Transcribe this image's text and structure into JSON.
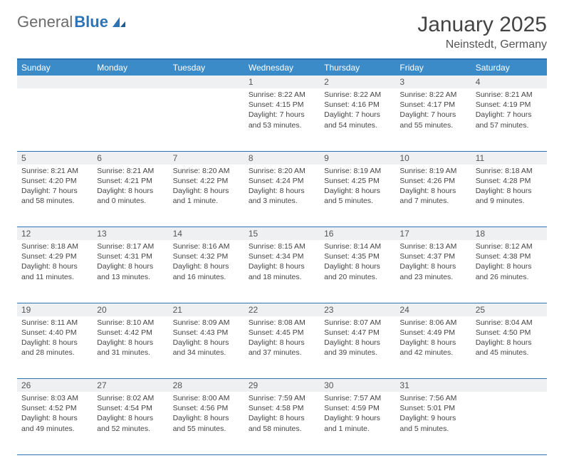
{
  "brand": {
    "part1": "General",
    "part2": "Blue"
  },
  "title": "January 2025",
  "location": "Neinstedt, Germany",
  "colors": {
    "header_bg": "#3b8bc9",
    "header_text": "#ffffff",
    "rule": "#2e74b5",
    "daynum_bg": "#eef0f2",
    "text": "#444444"
  },
  "day_headers": [
    "Sunday",
    "Monday",
    "Tuesday",
    "Wednesday",
    "Thursday",
    "Friday",
    "Saturday"
  ],
  "weeks": [
    [
      null,
      null,
      null,
      {
        "n": "1",
        "sr": "8:22 AM",
        "ss": "4:15 PM",
        "dl": "7 hours and 53 minutes."
      },
      {
        "n": "2",
        "sr": "8:22 AM",
        "ss": "4:16 PM",
        "dl": "7 hours and 54 minutes."
      },
      {
        "n": "3",
        "sr": "8:22 AM",
        "ss": "4:17 PM",
        "dl": "7 hours and 55 minutes."
      },
      {
        "n": "4",
        "sr": "8:21 AM",
        "ss": "4:19 PM",
        "dl": "7 hours and 57 minutes."
      }
    ],
    [
      {
        "n": "5",
        "sr": "8:21 AM",
        "ss": "4:20 PM",
        "dl": "7 hours and 58 minutes."
      },
      {
        "n": "6",
        "sr": "8:21 AM",
        "ss": "4:21 PM",
        "dl": "8 hours and 0 minutes."
      },
      {
        "n": "7",
        "sr": "8:20 AM",
        "ss": "4:22 PM",
        "dl": "8 hours and 1 minute."
      },
      {
        "n": "8",
        "sr": "8:20 AM",
        "ss": "4:24 PM",
        "dl": "8 hours and 3 minutes."
      },
      {
        "n": "9",
        "sr": "8:19 AM",
        "ss": "4:25 PM",
        "dl": "8 hours and 5 minutes."
      },
      {
        "n": "10",
        "sr": "8:19 AM",
        "ss": "4:26 PM",
        "dl": "8 hours and 7 minutes."
      },
      {
        "n": "11",
        "sr": "8:18 AM",
        "ss": "4:28 PM",
        "dl": "8 hours and 9 minutes."
      }
    ],
    [
      {
        "n": "12",
        "sr": "8:18 AM",
        "ss": "4:29 PM",
        "dl": "8 hours and 11 minutes."
      },
      {
        "n": "13",
        "sr": "8:17 AM",
        "ss": "4:31 PM",
        "dl": "8 hours and 13 minutes."
      },
      {
        "n": "14",
        "sr": "8:16 AM",
        "ss": "4:32 PM",
        "dl": "8 hours and 16 minutes."
      },
      {
        "n": "15",
        "sr": "8:15 AM",
        "ss": "4:34 PM",
        "dl": "8 hours and 18 minutes."
      },
      {
        "n": "16",
        "sr": "8:14 AM",
        "ss": "4:35 PM",
        "dl": "8 hours and 20 minutes."
      },
      {
        "n": "17",
        "sr": "8:13 AM",
        "ss": "4:37 PM",
        "dl": "8 hours and 23 minutes."
      },
      {
        "n": "18",
        "sr": "8:12 AM",
        "ss": "4:38 PM",
        "dl": "8 hours and 26 minutes."
      }
    ],
    [
      {
        "n": "19",
        "sr": "8:11 AM",
        "ss": "4:40 PM",
        "dl": "8 hours and 28 minutes."
      },
      {
        "n": "20",
        "sr": "8:10 AM",
        "ss": "4:42 PM",
        "dl": "8 hours and 31 minutes."
      },
      {
        "n": "21",
        "sr": "8:09 AM",
        "ss": "4:43 PM",
        "dl": "8 hours and 34 minutes."
      },
      {
        "n": "22",
        "sr": "8:08 AM",
        "ss": "4:45 PM",
        "dl": "8 hours and 37 minutes."
      },
      {
        "n": "23",
        "sr": "8:07 AM",
        "ss": "4:47 PM",
        "dl": "8 hours and 39 minutes."
      },
      {
        "n": "24",
        "sr": "8:06 AM",
        "ss": "4:49 PM",
        "dl": "8 hours and 42 minutes."
      },
      {
        "n": "25",
        "sr": "8:04 AM",
        "ss": "4:50 PM",
        "dl": "8 hours and 45 minutes."
      }
    ],
    [
      {
        "n": "26",
        "sr": "8:03 AM",
        "ss": "4:52 PM",
        "dl": "8 hours and 49 minutes."
      },
      {
        "n": "27",
        "sr": "8:02 AM",
        "ss": "4:54 PM",
        "dl": "8 hours and 52 minutes."
      },
      {
        "n": "28",
        "sr": "8:00 AM",
        "ss": "4:56 PM",
        "dl": "8 hours and 55 minutes."
      },
      {
        "n": "29",
        "sr": "7:59 AM",
        "ss": "4:58 PM",
        "dl": "8 hours and 58 minutes."
      },
      {
        "n": "30",
        "sr": "7:57 AM",
        "ss": "4:59 PM",
        "dl": "9 hours and 1 minute."
      },
      {
        "n": "31",
        "sr": "7:56 AM",
        "ss": "5:01 PM",
        "dl": "9 hours and 5 minutes."
      },
      null
    ]
  ],
  "labels": {
    "sunrise": "Sunrise: ",
    "sunset": "Sunset: ",
    "daylight": "Daylight: "
  }
}
